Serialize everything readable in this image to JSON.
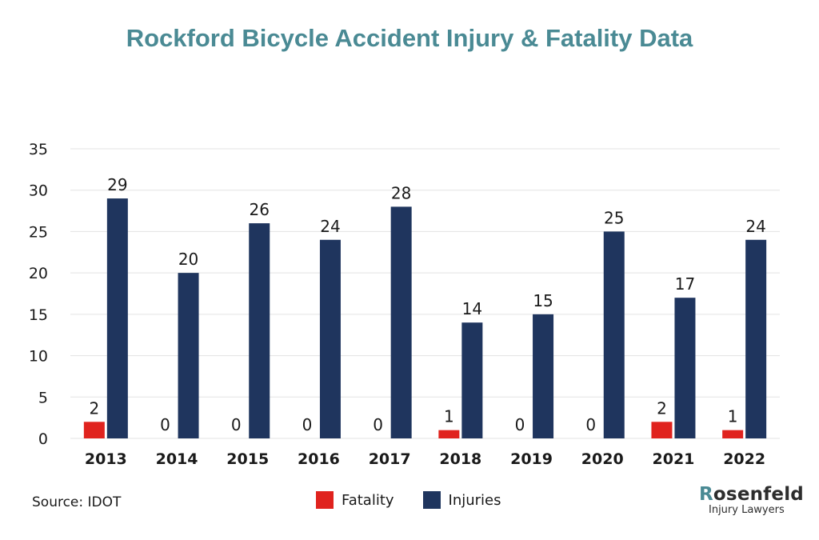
{
  "colors": {
    "title": "#4a8a94",
    "fatality": "#e0231e",
    "injuries": "#1f355e",
    "grid": "#e3e3e3",
    "text": "#1a1a1a"
  },
  "chart_data": {
    "type": "bar",
    "title": "Rockford Bicycle Accident Injury & Fatality Data",
    "categories": [
      "2013",
      "2014",
      "2015",
      "2016",
      "2017",
      "2018",
      "2019",
      "2020",
      "2021",
      "2022"
    ],
    "series": [
      {
        "name": "Fatality",
        "values": [
          2,
          0,
          0,
          0,
          0,
          1,
          0,
          0,
          2,
          1
        ]
      },
      {
        "name": "Injuries",
        "values": [
          29,
          20,
          26,
          24,
          28,
          14,
          15,
          25,
          17,
          24
        ]
      }
    ],
    "ylim": [
      0,
      35
    ],
    "yticks": [
      0,
      5,
      10,
      15,
      20,
      25,
      30,
      35
    ],
    "grid": true,
    "legend": "bottom-center",
    "data_labels": true
  },
  "source": "Source: IDOT",
  "logo": {
    "name_initial": "R",
    "name_rest": "osenfeld",
    "tagline": "Injury Lawyers"
  }
}
